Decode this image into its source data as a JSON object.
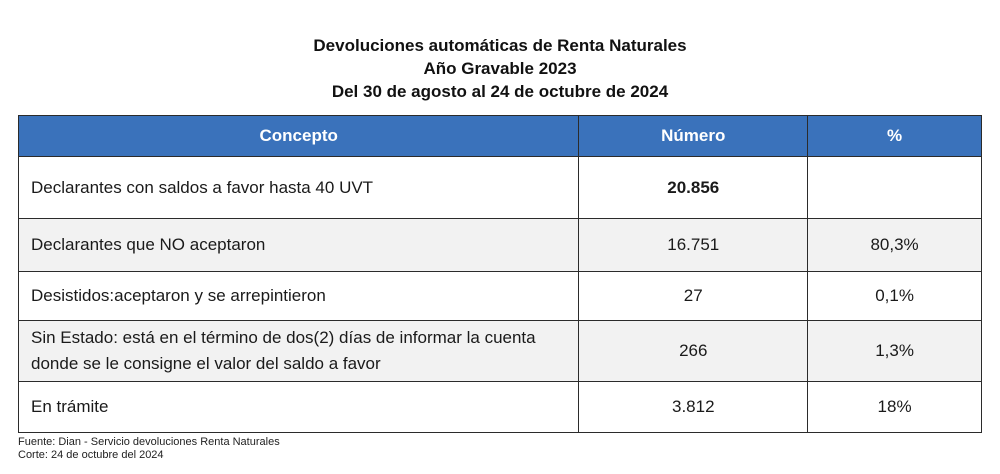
{
  "title": {
    "line1": "Devoluciones automáticas de Renta Naturales",
    "line2": "Año Gravable 2023",
    "line3": "Del 30 de agosto al 24 de octubre de 2024"
  },
  "table": {
    "headers": [
      "Concepto",
      "Número",
      "%"
    ],
    "rows": [
      {
        "concepto": "Declarantes con saldos a favor hasta 40 UVT",
        "numero": "20.856",
        "pct": ""
      },
      {
        "concepto": "Declarantes que NO aceptaron",
        "numero": "16.751",
        "pct": "80,3%"
      },
      {
        "concepto": "Desistidos:aceptaron y se arrepintieron",
        "numero": "27",
        "pct": "0,1%"
      },
      {
        "concepto": "Sin Estado: está en el término de dos(2) días de informar la cuenta donde se le consigne el valor del saldo a favor",
        "numero": "266",
        "pct": "1,3%"
      },
      {
        "concepto": "En trámite",
        "numero": "3.812",
        "pct": "18%"
      }
    ]
  },
  "footnote": {
    "source": "Fuente: Dian - Servicio devoluciones Renta Naturales",
    "cutoff": "Corte: 24 de octubre del 2024"
  },
  "colors": {
    "header_bg": "#3a72bb",
    "header_text": "#ffffff",
    "shaded_row": "#f2f2f2",
    "border": "#2b2b2b"
  }
}
